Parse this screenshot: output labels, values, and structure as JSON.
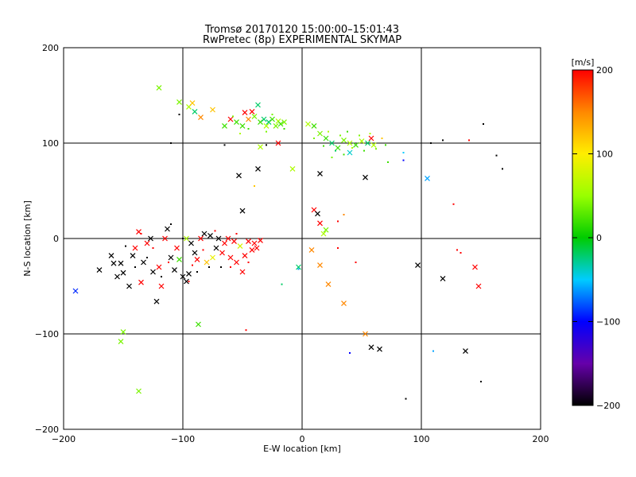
{
  "chart_data": {
    "type": "scatter",
    "title": "Tromsø 20170120 15:00:00–15:01:43",
    "subtitle": "RwPretec (8p) EXPERIMENTAL SKYMAP",
    "xlabel": "E-W location [km]",
    "ylabel": "N-S location [km]",
    "xlim": [
      -200,
      200
    ],
    "ylim": [
      -200,
      200
    ],
    "xticks": [
      "−200",
      "−100",
      "0",
      "100",
      "200"
    ],
    "yticks": [
      "−200",
      "−100",
      "0",
      "100",
      "200"
    ],
    "grid": true,
    "colorbar": {
      "label": "[m/s]",
      "range": [
        -200,
        200
      ],
      "ticks": [
        "200",
        "100",
        "0",
        "−100",
        "−200"
      ]
    },
    "points": [
      {
        "x": -190,
        "y": -55,
        "v": -90,
        "m": "x"
      },
      {
        "x": -170,
        "y": -33,
        "v": -200,
        "m": "x"
      },
      {
        "x": -160,
        "y": -18,
        "v": -200,
        "m": "x"
      },
      {
        "x": -158,
        "y": -26,
        "v": -200,
        "m": "x"
      },
      {
        "x": -155,
        "y": -40,
        "v": -200,
        "m": "x"
      },
      {
        "x": -152,
        "y": -26,
        "v": -200,
        "m": "x"
      },
      {
        "x": -150,
        "y": -36,
        "v": -200,
        "m": "x"
      },
      {
        "x": -145,
        "y": -50,
        "v": -200,
        "m": "x"
      },
      {
        "x": -142,
        "y": -18,
        "v": -200,
        "m": "x"
      },
      {
        "x": -140,
        "y": -10,
        "v": 200,
        "m": "x"
      },
      {
        "x": -137,
        "y": 7,
        "v": 200,
        "m": "x"
      },
      {
        "x": -135,
        "y": -46,
        "v": 200,
        "m": "x"
      },
      {
        "x": -133,
        "y": -25,
        "v": -200,
        "m": "x"
      },
      {
        "x": -130,
        "y": -5,
        "v": 200,
        "m": "x"
      },
      {
        "x": -127,
        "y": 0,
        "v": -200,
        "m": "x"
      },
      {
        "x": -125,
        "y": -35,
        "v": -200,
        "m": "x"
      },
      {
        "x": -122,
        "y": -66,
        "v": -200,
        "m": "x"
      },
      {
        "x": -120,
        "y": -30,
        "v": 200,
        "m": "x"
      },
      {
        "x": -118,
        "y": -50,
        "v": 200,
        "m": "x"
      },
      {
        "x": -115,
        "y": 0,
        "v": 200,
        "m": "x"
      },
      {
        "x": -113,
        "y": 10,
        "v": -200,
        "m": "x"
      },
      {
        "x": -110,
        "y": -20,
        "v": -200,
        "m": "x"
      },
      {
        "x": -107,
        "y": -33,
        "v": -200,
        "m": "x"
      },
      {
        "x": -105,
        "y": -10,
        "v": 200,
        "m": "x"
      },
      {
        "x": -100,
        "y": -40,
        "v": -200,
        "m": "x"
      },
      {
        "x": -97,
        "y": -45,
        "v": -200,
        "m": "x"
      },
      {
        "x": -95,
        "y": -37,
        "v": -200,
        "m": "x"
      },
      {
        "x": -93,
        "y": -5,
        "v": -200,
        "m": "x"
      },
      {
        "x": -90,
        "y": -15,
        "v": -200,
        "m": "x"
      },
      {
        "x": -88,
        "y": -22,
        "v": 200,
        "m": "x"
      },
      {
        "x": -85,
        "y": 0,
        "v": 200,
        "m": "x"
      },
      {
        "x": -82,
        "y": 5,
        "v": -200,
        "m": "x"
      },
      {
        "x": -80,
        "y": -25,
        "v": 120,
        "m": "x"
      },
      {
        "x": -77,
        "y": 3,
        "v": -200,
        "m": "x"
      },
      {
        "x": -75,
        "y": -20,
        "v": 90,
        "m": "x"
      },
      {
        "x": -72,
        "y": -10,
        "v": -200,
        "m": "x"
      },
      {
        "x": -70,
        "y": 0,
        "v": -200,
        "m": "x"
      },
      {
        "x": -67,
        "y": -15,
        "v": 200,
        "m": "x"
      },
      {
        "x": -65,
        "y": -5,
        "v": 200,
        "m": "x"
      },
      {
        "x": -62,
        "y": 0,
        "v": 200,
        "m": "x"
      },
      {
        "x": -60,
        "y": -20,
        "v": 200,
        "m": "x"
      },
      {
        "x": -57,
        "y": -3,
        "v": 200,
        "m": "x"
      },
      {
        "x": -55,
        "y": -25,
        "v": 200,
        "m": "x"
      },
      {
        "x": -52,
        "y": -8,
        "v": 80,
        "m": "x"
      },
      {
        "x": -50,
        "y": -35,
        "v": 200,
        "m": "x"
      },
      {
        "x": -48,
        "y": -18,
        "v": 200,
        "m": "x"
      },
      {
        "x": -45,
        "y": -3,
        "v": 200,
        "m": "x"
      },
      {
        "x": -42,
        "y": -12,
        "v": 200,
        "m": "x"
      },
      {
        "x": -40,
        "y": -5,
        "v": 200,
        "m": "x"
      },
      {
        "x": -38,
        "y": -10,
        "v": 200,
        "m": "x"
      },
      {
        "x": -35,
        "y": -2,
        "v": 200,
        "m": "x"
      },
      {
        "x": -120,
        "y": 158,
        "v": 40,
        "m": "x"
      },
      {
        "x": -103,
        "y": 143,
        "v": 40,
        "m": "x"
      },
      {
        "x": -95,
        "y": 138,
        "v": 60,
        "m": "x"
      },
      {
        "x": -92,
        "y": 142,
        "v": 120,
        "m": "x"
      },
      {
        "x": -90,
        "y": 133,
        "v": -20,
        "m": "x"
      },
      {
        "x": -85,
        "y": 127,
        "v": 150,
        "m": "x"
      },
      {
        "x": -75,
        "y": 135,
        "v": 120,
        "m": "x"
      },
      {
        "x": -65,
        "y": 118,
        "v": 20,
        "m": "x"
      },
      {
        "x": -60,
        "y": 125,
        "v": 200,
        "m": "x"
      },
      {
        "x": -55,
        "y": 122,
        "v": 20,
        "m": "x"
      },
      {
        "x": -50,
        "y": 118,
        "v": 20,
        "m": "x"
      },
      {
        "x": -48,
        "y": 132,
        "v": 200,
        "m": "x"
      },
      {
        "x": -45,
        "y": 125,
        "v": 150,
        "m": "x"
      },
      {
        "x": -42,
        "y": 133,
        "v": 200,
        "m": "x"
      },
      {
        "x": -40,
        "y": 128,
        "v": 40,
        "m": "x"
      },
      {
        "x": -37,
        "y": 140,
        "v": -20,
        "m": "x"
      },
      {
        "x": -35,
        "y": 122,
        "v": 20,
        "m": "x"
      },
      {
        "x": -32,
        "y": 125,
        "v": -20,
        "m": "x"
      },
      {
        "x": -30,
        "y": 118,
        "v": 60,
        "m": "x"
      },
      {
        "x": -28,
        "y": 122,
        "v": -20,
        "m": "x"
      },
      {
        "x": -25,
        "y": 125,
        "v": 20,
        "m": "x"
      },
      {
        "x": -22,
        "y": 118,
        "v": 40,
        "m": "x"
      },
      {
        "x": -20,
        "y": 123,
        "v": 60,
        "m": "x"
      },
      {
        "x": -18,
        "y": 120,
        "v": 20,
        "m": "x"
      },
      {
        "x": -15,
        "y": 122,
        "v": 40,
        "m": "x"
      },
      {
        "x": -35,
        "y": 96,
        "v": 60,
        "m": "x"
      },
      {
        "x": -20,
        "y": 100,
        "v": 200,
        "m": "x"
      },
      {
        "x": -8,
        "y": 73,
        "v": 60,
        "m": "x"
      },
      {
        "x": -37,
        "y": 73,
        "v": -200,
        "m": "x"
      },
      {
        "x": -53,
        "y": 66,
        "v": -200,
        "m": "x"
      },
      {
        "x": -50,
        "y": 29,
        "v": -200,
        "m": "x"
      },
      {
        "x": 5,
        "y": 120,
        "v": 60,
        "m": "x"
      },
      {
        "x": 10,
        "y": 118,
        "v": 20,
        "m": "x"
      },
      {
        "x": 15,
        "y": 110,
        "v": 40,
        "m": "x"
      },
      {
        "x": 20,
        "y": 105,
        "v": 20,
        "m": "x"
      },
      {
        "x": 25,
        "y": 100,
        "v": -20,
        "m": "x"
      },
      {
        "x": 30,
        "y": 95,
        "v": 20,
        "m": "x"
      },
      {
        "x": 35,
        "y": 103,
        "v": 40,
        "m": "x"
      },
      {
        "x": 40,
        "y": 100,
        "v": 60,
        "m": "x"
      },
      {
        "x": 45,
        "y": 98,
        "v": 20,
        "m": "x"
      },
      {
        "x": 50,
        "y": 102,
        "v": 60,
        "m": "x"
      },
      {
        "x": 55,
        "y": 100,
        "v": -20,
        "m": "x"
      },
      {
        "x": 58,
        "y": 105,
        "v": 200,
        "m": "x"
      },
      {
        "x": 60,
        "y": 98,
        "v": 60,
        "m": "x"
      },
      {
        "x": 40,
        "y": 90,
        "v": -40,
        "m": "x"
      },
      {
        "x": 15,
        "y": 68,
        "v": -200,
        "m": "x"
      },
      {
        "x": 53,
        "y": 64,
        "v": -200,
        "m": "x"
      },
      {
        "x": 105,
        "y": 63,
        "v": -60,
        "m": "x"
      },
      {
        "x": 10,
        "y": 30,
        "v": 200,
        "m": "x"
      },
      {
        "x": 13,
        "y": 26,
        "v": -200,
        "m": "x"
      },
      {
        "x": 15,
        "y": 16,
        "v": 200,
        "m": "x"
      },
      {
        "x": 18,
        "y": 5,
        "v": 60,
        "m": "x"
      },
      {
        "x": 20,
        "y": 9,
        "v": 40,
        "m": "x"
      },
      {
        "x": 8,
        "y": -12,
        "v": 150,
        "m": "x"
      },
      {
        "x": 15,
        "y": -28,
        "v": 150,
        "m": "x"
      },
      {
        "x": 22,
        "y": -48,
        "v": 150,
        "m": "x"
      },
      {
        "x": 35,
        "y": -68,
        "v": 150,
        "m": "x"
      },
      {
        "x": -3,
        "y": -30,
        "v": -20,
        "m": "x"
      },
      {
        "x": 97,
        "y": -28,
        "v": -200,
        "m": "x"
      },
      {
        "x": 118,
        "y": -42,
        "v": -200,
        "m": "x"
      },
      {
        "x": 145,
        "y": -30,
        "v": 200,
        "m": "x"
      },
      {
        "x": 148,
        "y": -50,
        "v": 200,
        "m": "x"
      },
      {
        "x": 58,
        "y": -114,
        "v": -200,
        "m": "x"
      },
      {
        "x": 65,
        "y": -116,
        "v": -200,
        "m": "x"
      },
      {
        "x": 137,
        "y": -118,
        "v": -200,
        "m": "x"
      },
      {
        "x": 53,
        "y": -100,
        "v": 150,
        "m": "x"
      },
      {
        "x": -150,
        "y": -98,
        "v": 40,
        "m": "x"
      },
      {
        "x": -152,
        "y": -108,
        "v": 40,
        "m": "x"
      },
      {
        "x": -137,
        "y": -160,
        "v": 40,
        "m": "x"
      },
      {
        "x": -87,
        "y": -90,
        "v": 20,
        "m": "x"
      },
      {
        "x": -103,
        "y": -22,
        "v": 20,
        "m": "x"
      },
      {
        "x": -97,
        "y": 0,
        "v": 60,
        "m": "x"
      },
      {
        "x": -103,
        "y": 130,
        "v": -200,
        "m": "."
      },
      {
        "x": -110,
        "y": 100,
        "v": -200,
        "m": "."
      },
      {
        "x": -65,
        "y": 98,
        "v": -200,
        "m": "."
      },
      {
        "x": -30,
        "y": 98,
        "v": -200,
        "m": "."
      },
      {
        "x": -40,
        "y": 55,
        "v": 120,
        "m": "."
      },
      {
        "x": 108,
        "y": 100,
        "v": -200,
        "m": "."
      },
      {
        "x": 118,
        "y": 103,
        "v": -200,
        "m": "."
      },
      {
        "x": 140,
        "y": 103,
        "v": 200,
        "m": "."
      },
      {
        "x": 152,
        "y": 120,
        "v": -200,
        "m": "."
      },
      {
        "x": 163,
        "y": 87,
        "v": -200,
        "m": "."
      },
      {
        "x": 168,
        "y": 73,
        "v": -200,
        "m": "."
      },
      {
        "x": 85,
        "y": 82,
        "v": -100,
        "m": "."
      },
      {
        "x": 85,
        "y": 90,
        "v": -50,
        "m": "."
      },
      {
        "x": 127,
        "y": 36,
        "v": 200,
        "m": "."
      },
      {
        "x": 35,
        "y": 25,
        "v": 150,
        "m": "."
      },
      {
        "x": 30,
        "y": 18,
        "v": 200,
        "m": "."
      },
      {
        "x": 30,
        "y": -10,
        "v": 200,
        "m": "."
      },
      {
        "x": 45,
        "y": -25,
        "v": 200,
        "m": "."
      },
      {
        "x": 133,
        "y": -15,
        "v": 200,
        "m": "."
      },
      {
        "x": 130,
        "y": -12,
        "v": 200,
        "m": "."
      },
      {
        "x": -17,
        "y": -48,
        "v": -20,
        "m": "."
      },
      {
        "x": -3,
        "y": -32,
        "v": -60,
        "m": "."
      },
      {
        "x": 40,
        "y": -120,
        "v": -100,
        "m": "."
      },
      {
        "x": 110,
        "y": -118,
        "v": -60,
        "m": "."
      },
      {
        "x": 150,
        "y": -150,
        "v": -200,
        "m": "."
      },
      {
        "x": 87,
        "y": -168,
        "v": -200,
        "m": "."
      },
      {
        "x": -47,
        "y": -96,
        "v": 200,
        "m": "."
      },
      {
        "x": -130,
        "y": -20,
        "v": -200,
        "m": "."
      },
      {
        "x": -125,
        "y": -10,
        "v": 200,
        "m": "."
      },
      {
        "x": -118,
        "y": -40,
        "v": -200,
        "m": "."
      },
      {
        "x": -112,
        "y": -25,
        "v": 200,
        "m": "."
      },
      {
        "x": -100,
        "y": 0,
        "v": -200,
        "m": "."
      },
      {
        "x": -92,
        "y": -28,
        "v": 200,
        "m": "."
      },
      {
        "x": -88,
        "y": -35,
        "v": -200,
        "m": "."
      },
      {
        "x": -83,
        "y": -12,
        "v": 200,
        "m": "."
      },
      {
        "x": -78,
        "y": -30,
        "v": -200,
        "m": "."
      },
      {
        "x": -73,
        "y": 8,
        "v": 200,
        "m": "."
      },
      {
        "x": -68,
        "y": -30,
        "v": -200,
        "m": "."
      },
      {
        "x": -60,
        "y": -30,
        "v": 200,
        "m": "."
      },
      {
        "x": -55,
        "y": 5,
        "v": 200,
        "m": "."
      },
      {
        "x": -45,
        "y": -25,
        "v": 200,
        "m": "."
      },
      {
        "x": -140,
        "y": -30,
        "v": -200,
        "m": "."
      },
      {
        "x": -148,
        "y": -8,
        "v": -200,
        "m": "."
      },
      {
        "x": -135,
        "y": 5,
        "v": 200,
        "m": "."
      },
      {
        "x": -110,
        "y": 15,
        "v": -200,
        "m": "."
      },
      {
        "x": -95,
        "y": -45,
        "v": 200,
        "m": "."
      },
      {
        "x": 10,
        "y": 105,
        "v": 40,
        "m": "."
      },
      {
        "x": 18,
        "y": 97,
        "v": 20,
        "m": "."
      },
      {
        "x": 22,
        "y": 112,
        "v": 60,
        "m": "."
      },
      {
        "x": 28,
        "y": 92,
        "v": -20,
        "m": "."
      },
      {
        "x": 32,
        "y": 108,
        "v": 40,
        "m": "."
      },
      {
        "x": 38,
        "y": 112,
        "v": 20,
        "m": "."
      },
      {
        "x": 42,
        "y": 95,
        "v": 60,
        "m": "."
      },
      {
        "x": 48,
        "y": 108,
        "v": 40,
        "m": "."
      },
      {
        "x": 52,
        "y": 92,
        "v": 20,
        "m": "."
      },
      {
        "x": 57,
        "y": 110,
        "v": 60,
        "m": "."
      },
      {
        "x": 62,
        "y": 94,
        "v": 40,
        "m": "."
      },
      {
        "x": 67,
        "y": 105,
        "v": 120,
        "m": "."
      },
      {
        "x": 70,
        "y": 98,
        "v": 20,
        "m": "."
      },
      {
        "x": 35,
        "y": 88,
        "v": 20,
        "m": "."
      },
      {
        "x": 25,
        "y": 85,
        "v": 40,
        "m": "."
      },
      {
        "x": 72,
        "y": 80,
        "v": 20,
        "m": "."
      },
      {
        "x": -25,
        "y": 130,
        "v": 40,
        "m": "."
      },
      {
        "x": -45,
        "y": 115,
        "v": 20,
        "m": "."
      },
      {
        "x": -30,
        "y": 112,
        "v": 40,
        "m": "."
      },
      {
        "x": -15,
        "y": 115,
        "v": 20,
        "m": "."
      },
      {
        "x": -58,
        "y": 128,
        "v": 40,
        "m": "."
      },
      {
        "x": -52,
        "y": 110,
        "v": 60,
        "m": "."
      }
    ]
  }
}
